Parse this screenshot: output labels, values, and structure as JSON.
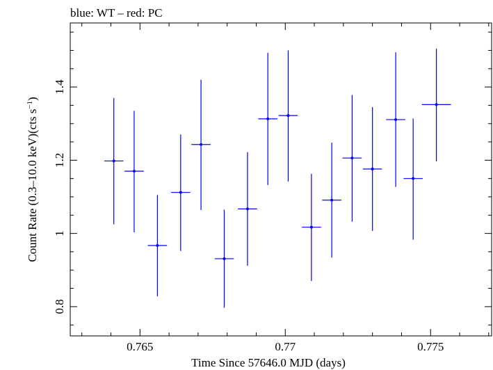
{
  "chart_data": {
    "type": "scatter",
    "title": "blue: WT – red: PC",
    "xlabel": "Time Since 57646.0 MJD (days)",
    "ylabel_main": "Count Rate (0.3–10.0 keV)(cts s",
    "ylabel_sup": "−1",
    "ylabel_close": ")",
    "xlim": [
      0.7626,
      0.7771
    ],
    "ylim": [
      0.72,
      1.575
    ],
    "xticks": [
      0.765,
      0.77,
      0.775
    ],
    "xtick_labels": [
      "0.765",
      "0.77",
      "0.775"
    ],
    "yticks": [
      0.8,
      1.0,
      1.2,
      1.4
    ],
    "ytick_labels": [
      "0.8",
      "1",
      "1.2",
      "1.4"
    ],
    "grid": false,
    "series": [
      {
        "color": "#0000ff",
        "points": [
          {
            "x": 0.7641,
            "y": 1.198,
            "xerr": 0.00033,
            "ylo": 1.025,
            "yhi": 1.37
          },
          {
            "x": 0.7648,
            "y": 1.17,
            "xerr": 0.00033,
            "ylo": 1.003,
            "yhi": 1.335
          },
          {
            "x": 0.7656,
            "y": 0.967,
            "xerr": 0.00033,
            "ylo": 0.828,
            "yhi": 1.105
          },
          {
            "x": 0.7664,
            "y": 1.112,
            "xerr": 0.00033,
            "ylo": 0.952,
            "yhi": 1.27
          },
          {
            "x": 0.7671,
            "y": 1.243,
            "xerr": 0.00033,
            "ylo": 1.064,
            "yhi": 1.42
          },
          {
            "x": 0.7679,
            "y": 0.931,
            "xerr": 0.00033,
            "ylo": 0.797,
            "yhi": 1.065
          },
          {
            "x": 0.7687,
            "y": 1.067,
            "xerr": 0.00033,
            "ylo": 0.912,
            "yhi": 1.222
          },
          {
            "x": 0.7694,
            "y": 1.313,
            "xerr": 0.00033,
            "ylo": 1.132,
            "yhi": 1.493
          },
          {
            "x": 0.7701,
            "y": 1.322,
            "xerr": 0.00033,
            "ylo": 1.142,
            "yhi": 1.5
          },
          {
            "x": 0.7709,
            "y": 1.017,
            "xerr": 0.00033,
            "ylo": 0.87,
            "yhi": 1.163
          },
          {
            "x": 0.7716,
            "y": 1.091,
            "xerr": 0.00033,
            "ylo": 0.934,
            "yhi": 1.248
          },
          {
            "x": 0.7723,
            "y": 1.206,
            "xerr": 0.00033,
            "ylo": 1.032,
            "yhi": 1.378
          },
          {
            "x": 0.773,
            "y": 1.176,
            "xerr": 0.00033,
            "ylo": 1.007,
            "yhi": 1.345
          },
          {
            "x": 0.7738,
            "y": 1.311,
            "xerr": 0.00033,
            "ylo": 1.127,
            "yhi": 1.495
          },
          {
            "x": 0.7744,
            "y": 1.15,
            "xerr": 0.00033,
            "ylo": 0.983,
            "yhi": 1.314
          },
          {
            "x": 0.7752,
            "y": 1.352,
            "xerr": 0.0005,
            "ylo": 1.197,
            "yhi": 1.505
          }
        ]
      }
    ]
  }
}
